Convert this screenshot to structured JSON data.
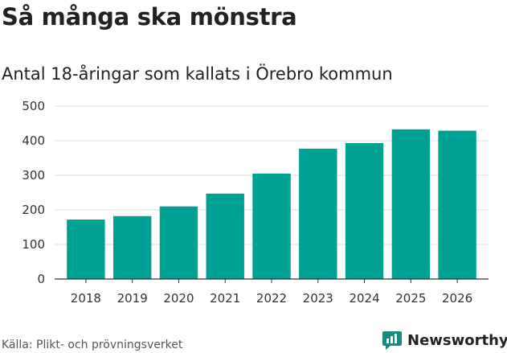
{
  "header": {
    "title": "Så många ska mönstra",
    "subtitle": "Antal 18-åringar som kallats i Örebro kommun"
  },
  "footer": {
    "source": "Källa: Plikt- och prövningsverket",
    "brand": "Newsworthy",
    "brand_icon": "newsworthy-logo-icon"
  },
  "colors": {
    "bar": "#00a195",
    "grid": "#dddddd",
    "axis": "#333333",
    "brand": "#1a8a80"
  },
  "chart_data": {
    "type": "bar",
    "title": "Så många ska mönstra",
    "subtitle": "Antal 18-åringar som kallats i Örebro kommun",
    "xlabel": "",
    "ylabel": "",
    "categories": [
      "2018",
      "2019",
      "2020",
      "2021",
      "2022",
      "2023",
      "2024",
      "2025",
      "2026"
    ],
    "values": [
      172,
      182,
      210,
      247,
      305,
      377,
      393,
      433,
      429
    ],
    "ylim": [
      0,
      500
    ],
    "yticks": [
      0,
      100,
      200,
      300,
      400,
      500
    ],
    "grid": true,
    "legend": false
  }
}
